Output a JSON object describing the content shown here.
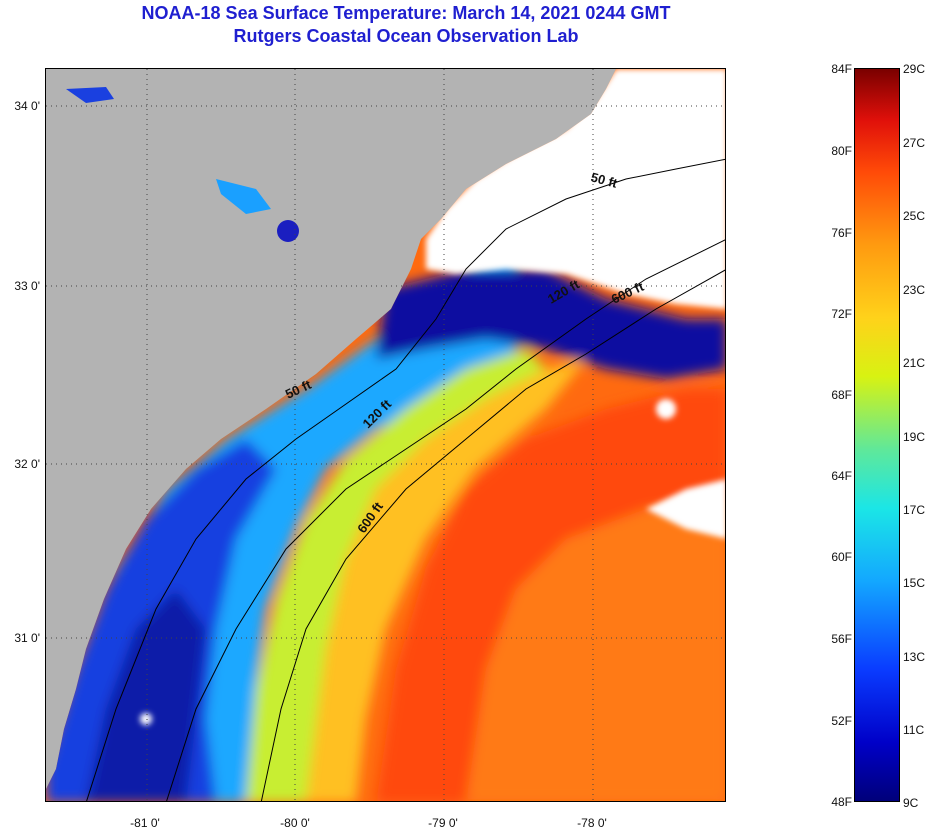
{
  "title": {
    "line1": "NOAA-18 Sea Surface Temperature:  March 14, 2021 0244 GMT",
    "line2": "Rutgers Coastal Ocean Observation Lab"
  },
  "map": {
    "lat_labels": [
      "34 0'",
      "33 0'",
      "32 0'",
      "31 0'"
    ],
    "lon_labels": [
      "-81 0'",
      "-80 0'",
      "-79 0'",
      "-78 0'"
    ],
    "depth_contours": [
      "50 ft",
      "120 ft",
      "600 ft",
      "50 ft",
      "120 ft",
      "600 ft"
    ],
    "colors": {
      "land": "#b3b3b3",
      "cloud": "#ffffff",
      "cold": "#0000a0",
      "warm": "#ff5010"
    }
  },
  "colorbar": {
    "fahrenheit": [
      "84F",
      "80F",
      "76F",
      "72F",
      "68F",
      "64F",
      "60F",
      "56F",
      "52F",
      "48F"
    ],
    "celsius": [
      "29C",
      "27C",
      "25C",
      "23C",
      "21C",
      "19C",
      "17C",
      "15C",
      "13C",
      "11C",
      "9C"
    ]
  }
}
